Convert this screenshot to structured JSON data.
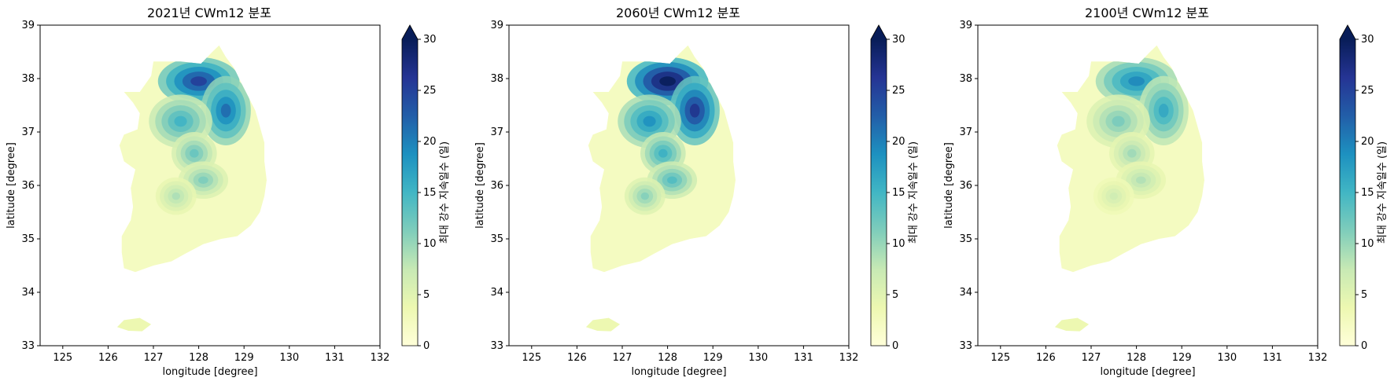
{
  "colormap": [
    "#ffffd9",
    "#edf8b1",
    "#c7e9b4",
    "#7fcdbb",
    "#41b6c4",
    "#1d91c0",
    "#225ea8",
    "#253494",
    "#081d58"
  ],
  "chart_data": [
    {
      "type": "heatmap",
      "title": "2021년 CWm12 분포",
      "xlabel": "longitude [degree]",
      "ylabel": "latitude [degree]",
      "xlim": [
        124.5,
        132
      ],
      "ylim": [
        33,
        39
      ],
      "xticks": [
        "125",
        "126",
        "127",
        "128",
        "129",
        "130",
        "131",
        "132"
      ],
      "yticks": [
        "33",
        "34",
        "35",
        "36",
        "37",
        "38",
        "39"
      ],
      "colorbar": {
        "label": "최대 강수 지속일수 (일)",
        "range": [
          0,
          30
        ],
        "ticks": [
          "0",
          "5",
          "10",
          "15",
          "20",
          "25",
          "30"
        ],
        "extend": "max"
      },
      "intensity": 0.85
    },
    {
      "type": "heatmap",
      "title": "2060년 CWm12 분포",
      "xlabel": "longitude [degree]",
      "ylabel": "latitude [degree]",
      "xlim": [
        124.5,
        132
      ],
      "ylim": [
        33,
        39
      ],
      "xticks": [
        "125",
        "126",
        "127",
        "128",
        "129",
        "130",
        "131",
        "132"
      ],
      "yticks": [
        "33",
        "34",
        "35",
        "36",
        "37",
        "38",
        "39"
      ],
      "colorbar": {
        "label": "최대 강수 지속일수 (일)",
        "range": [
          0,
          30
        ],
        "ticks": [
          "0",
          "5",
          "10",
          "15",
          "20",
          "25",
          "30"
        ],
        "extend": "max"
      },
      "intensity": 1.05
    },
    {
      "type": "heatmap",
      "title": "2100년 CWm12 분포",
      "xlabel": "longitude [degree]",
      "ylabel": "latitude [degree]",
      "xlim": [
        124.5,
        132
      ],
      "ylim": [
        33,
        39
      ],
      "xticks": [
        "125",
        "126",
        "127",
        "128",
        "129",
        "130",
        "131",
        "132"
      ],
      "yticks": [
        "33",
        "34",
        "35",
        "36",
        "37",
        "38",
        "39"
      ],
      "colorbar": {
        "label": "최대 강수 지속일수 (일)",
        "range": [
          0,
          30
        ],
        "ticks": [
          "0",
          "5",
          "10",
          "15",
          "20",
          "25",
          "30"
        ],
        "extend": "max"
      },
      "intensity": 0.65
    }
  ]
}
